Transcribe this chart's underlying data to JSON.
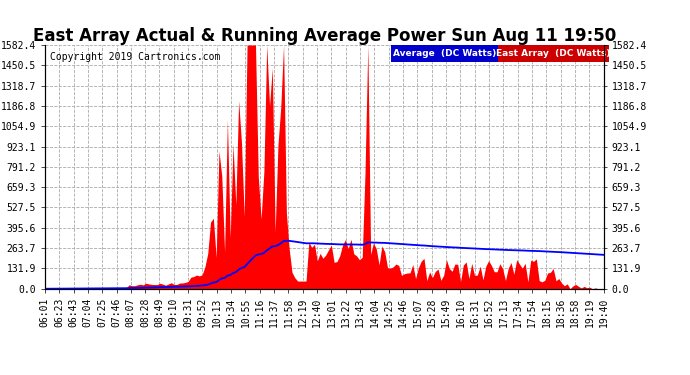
{
  "title": "East Array Actual & Running Average Power Sun Aug 11 19:50",
  "copyright": "Copyright 2019 Cartronics.com",
  "legend_labels": [
    "Average  (DC Watts)",
    "East Array  (DC Watts)"
  ],
  "yticks": [
    0.0,
    131.9,
    263.7,
    395.6,
    527.5,
    659.3,
    791.2,
    923.1,
    1054.9,
    1186.8,
    1318.7,
    1450.5,
    1582.4
  ],
  "ymax": 1582.4,
  "ymin": 0.0,
  "background_color": "#ffffff",
  "grid_color": "#aaaaaa",
  "bar_color": "#ff0000",
  "avg_color": "#0000ff",
  "legend_avg_color": "#0000cc",
  "legend_east_color": "#cc0000",
  "title_fontsize": 12,
  "tick_fontsize": 7,
  "xtick_labels": [
    "06:01",
    "06:23",
    "06:43",
    "07:04",
    "07:25",
    "07:46",
    "08:07",
    "08:28",
    "08:49",
    "09:10",
    "09:31",
    "09:52",
    "10:13",
    "10:34",
    "10:55",
    "11:16",
    "11:37",
    "11:58",
    "12:19",
    "12:40",
    "13:01",
    "13:22",
    "13:43",
    "14:04",
    "14:25",
    "14:46",
    "15:07",
    "15:28",
    "15:49",
    "16:10",
    "16:31",
    "16:52",
    "17:13",
    "17:34",
    "17:54",
    "18:15",
    "18:36",
    "18:58",
    "19:19",
    "19:40"
  ]
}
